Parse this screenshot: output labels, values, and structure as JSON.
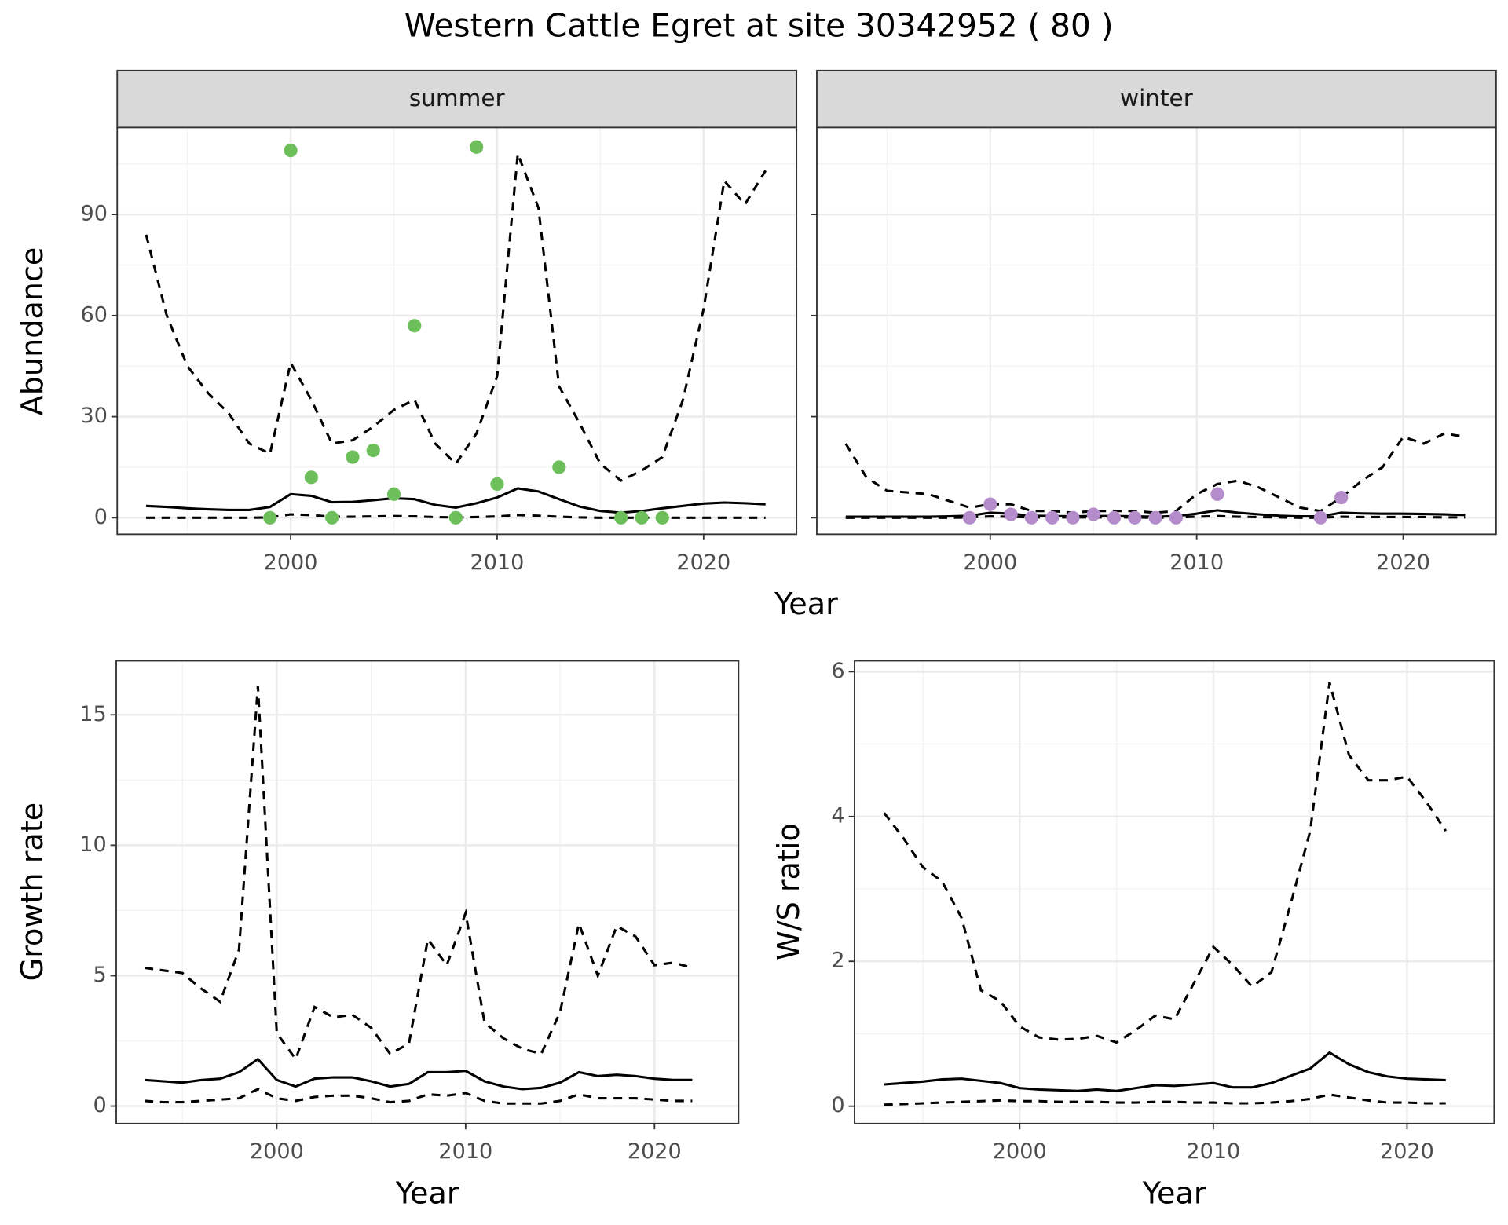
{
  "title": "Western Cattle Egret at site 30342952 ( 80 )",
  "chart_data": [
    {
      "type": "line",
      "xlabel": "Year",
      "ylabel": "Abundance",
      "xlim": [
        1991.6,
        2024.5
      ],
      "xticks": [
        2000,
        2010,
        2020
      ],
      "ylim": [
        -4.9,
        115.8
      ],
      "yticks": [
        0,
        30,
        60,
        90
      ],
      "grid": true,
      "facets": [
        {
          "label": "summer",
          "x": [
            1993,
            1994,
            1995,
            1996,
            1997,
            1998,
            1999,
            2000,
            2001,
            2002,
            2003,
            2004,
            2005,
            2006,
            2007,
            2008,
            2009,
            2010,
            2011,
            2012,
            2013,
            2014,
            2015,
            2016,
            2017,
            2018,
            2019,
            2020,
            2021,
            2022,
            2023
          ],
          "series": [
            {
              "style": "dashed",
              "color": "#000000",
              "values": [
                84,
                60,
                45,
                37,
                31,
                22,
                19,
                46,
                35,
                22,
                23,
                27,
                32,
                35,
                22,
                16,
                25,
                42,
                108,
                92,
                39,
                28,
                16,
                11,
                14,
                18,
                35,
                62,
                100,
                93,
                103
              ]
            },
            {
              "style": "solid",
              "color": "#000000",
              "values": [
                3.5,
                3.2,
                2.8,
                2.5,
                2.3,
                2.3,
                3.2,
                7,
                6.5,
                4.6,
                4.7,
                5.2,
                5.8,
                5.5,
                3.8,
                3.0,
                4.3,
                6.0,
                8.7,
                7.8,
                5.5,
                3.3,
                2.0,
                1.5,
                2.0,
                2.8,
                3.5,
                4.2,
                4.5,
                4.3,
                4.0
              ]
            },
            {
              "style": "dashed",
              "color": "#000000",
              "values": [
                0,
                0,
                0,
                0,
                0,
                0,
                0.1,
                1,
                0.8,
                0.3,
                0.3,
                0.4,
                0.5,
                0.4,
                0.2,
                0.1,
                0.2,
                0.4,
                0.8,
                0.6,
                0.3,
                0.1,
                0,
                0,
                0,
                0,
                0,
                0,
                0,
                0,
                0
              ]
            },
            {
              "style": "points",
              "color": "#6dbf5b",
              "x": [
                1999,
                2000,
                2001,
                2002,
                2003,
                2004,
                2005,
                2006,
                2008,
                2009,
                2010,
                2013,
                2016,
                2017,
                2018
              ],
              "values": [
                0,
                109,
                12,
                0,
                18,
                20,
                7,
                57,
                0,
                110,
                10,
                15,
                0,
                0,
                0
              ]
            }
          ]
        },
        {
          "label": "winter",
          "x": [
            1993,
            1994,
            1995,
            1996,
            1997,
            1998,
            1999,
            2000,
            2001,
            2002,
            2003,
            2004,
            2005,
            2006,
            2007,
            2008,
            2009,
            2010,
            2011,
            2012,
            2013,
            2014,
            2015,
            2016,
            2017,
            2018,
            2019,
            2020,
            2021,
            2022,
            2023
          ],
          "series": [
            {
              "style": "dashed",
              "color": "#000000",
              "values": [
                22,
                12,
                8,
                7.5,
                7,
                5,
                3,
                4,
                4,
                2,
                2,
                1.5,
                2,
                2,
                2,
                1.5,
                2,
                7,
                10,
                11,
                9,
                6,
                3,
                2,
                6,
                11,
                15,
                24,
                22,
                25,
                24
              ]
            },
            {
              "style": "solid",
              "color": "#000000",
              "values": [
                0.3,
                0.3,
                0.3,
                0.3,
                0.3,
                0.4,
                0.6,
                1.5,
                1.2,
                0.6,
                0.5,
                0.4,
                0.5,
                0.5,
                0.4,
                0.3,
                0.5,
                1.2,
                2.2,
                1.5,
                1.0,
                0.6,
                0.4,
                0.4,
                1.5,
                1.3,
                1.2,
                1.2,
                1.1,
                1.0,
                0.8
              ]
            },
            {
              "style": "dashed",
              "color": "#000000",
              "values": [
                0,
                0,
                0,
                0,
                0,
                0,
                0.1,
                0.4,
                0.3,
                0.1,
                0.1,
                0.1,
                0.1,
                0.1,
                0.1,
                0,
                0.1,
                0.3,
                0.5,
                0.3,
                0.2,
                0.1,
                0,
                0,
                0.3,
                0.2,
                0.2,
                0.2,
                0.2,
                0.1,
                0.1
              ]
            },
            {
              "style": "points",
              "color": "#b48ccb",
              "x": [
                1999,
                2000,
                2001,
                2002,
                2003,
                2004,
                2005,
                2006,
                2007,
                2008,
                2009,
                2011,
                2016,
                2017
              ],
              "values": [
                0,
                4,
                1,
                0,
                0,
                0,
                1,
                0,
                0,
                0,
                0,
                7,
                0,
                6
              ]
            }
          ]
        }
      ]
    },
    {
      "type": "line",
      "xlabel": "Year",
      "ylabel": "Growth rate",
      "xlim": [
        1991.5,
        2024.45
      ],
      "xticks": [
        2000,
        2010,
        2020
      ],
      "ylim": [
        -0.67,
        17.07
      ],
      "yticks": [
        0,
        5,
        10,
        15
      ],
      "grid": true,
      "x": [
        1993,
        1994,
        1995,
        1996,
        1997,
        1998,
        1999,
        2000,
        2001,
        2002,
        2003,
        2004,
        2005,
        2006,
        2007,
        2008,
        2009,
        2010,
        2011,
        2012,
        2013,
        2014,
        2015,
        2016,
        2017,
        2018,
        2019,
        2020,
        2021,
        2022
      ],
      "series": [
        {
          "style": "dashed",
          "color": "#000000",
          "values": [
            5.3,
            5.2,
            5.1,
            4.5,
            4.0,
            6.0,
            16.1,
            2.8,
            1.8,
            3.8,
            3.4,
            3.5,
            3.0,
            2.0,
            2.4,
            6.4,
            5.4,
            7.4,
            3.2,
            2.6,
            2.2,
            2.0,
            3.6,
            7.0,
            5.0,
            6.9,
            6.5,
            5.4,
            5.5,
            5.3
          ]
        },
        {
          "style": "solid",
          "color": "#000000",
          "values": [
            1.0,
            0.95,
            0.9,
            1.0,
            1.05,
            1.3,
            1.8,
            1.0,
            0.75,
            1.05,
            1.1,
            1.1,
            0.95,
            0.75,
            0.85,
            1.3,
            1.3,
            1.35,
            0.95,
            0.75,
            0.65,
            0.7,
            0.9,
            1.3,
            1.15,
            1.2,
            1.15,
            1.05,
            1.0,
            1.0
          ]
        },
        {
          "style": "dashed",
          "color": "#000000",
          "values": [
            0.2,
            0.15,
            0.15,
            0.2,
            0.25,
            0.3,
            0.65,
            0.3,
            0.2,
            0.35,
            0.4,
            0.4,
            0.3,
            0.15,
            0.2,
            0.45,
            0.4,
            0.5,
            0.2,
            0.1,
            0.1,
            0.1,
            0.2,
            0.45,
            0.3,
            0.3,
            0.3,
            0.25,
            0.2,
            0.2
          ]
        }
      ]
    },
    {
      "type": "line",
      "xlabel": "Year",
      "ylabel": "W/S ratio",
      "xlim": [
        1991.47,
        2024.5
      ],
      "xticks": [
        2000,
        2010,
        2020
      ],
      "ylim": [
        -0.24,
        6.15
      ],
      "yticks": [
        0,
        2,
        4,
        6
      ],
      "grid": true,
      "x": [
        1993,
        1994,
        1995,
        1996,
        1997,
        1998,
        1999,
        2000,
        2001,
        2002,
        2003,
        2004,
        2005,
        2006,
        2007,
        2008,
        2009,
        2010,
        2011,
        2012,
        2013,
        2014,
        2015,
        2016,
        2017,
        2018,
        2019,
        2020,
        2021,
        2022
      ],
      "series": [
        {
          "style": "dashed",
          "color": "#000000",
          "values": [
            4.05,
            3.7,
            3.3,
            3.1,
            2.6,
            1.6,
            1.45,
            1.1,
            0.95,
            0.92,
            0.93,
            0.97,
            0.88,
            1.05,
            1.25,
            1.2,
            1.7,
            2.2,
            1.95,
            1.65,
            1.85,
            2.8,
            3.8,
            5.85,
            4.85,
            4.5,
            4.5,
            4.55,
            4.2,
            3.8
          ]
        },
        {
          "style": "solid",
          "color": "#000000",
          "values": [
            0.3,
            0.32,
            0.34,
            0.37,
            0.38,
            0.35,
            0.32,
            0.25,
            0.23,
            0.22,
            0.21,
            0.23,
            0.21,
            0.25,
            0.29,
            0.28,
            0.3,
            0.32,
            0.26,
            0.26,
            0.32,
            0.42,
            0.52,
            0.74,
            0.58,
            0.47,
            0.41,
            0.38,
            0.37,
            0.36
          ]
        },
        {
          "style": "dashed",
          "color": "#000000",
          "values": [
            0.02,
            0.03,
            0.04,
            0.05,
            0.06,
            0.07,
            0.08,
            0.07,
            0.07,
            0.06,
            0.06,
            0.06,
            0.05,
            0.05,
            0.06,
            0.06,
            0.05,
            0.05,
            0.04,
            0.04,
            0.05,
            0.07,
            0.1,
            0.16,
            0.12,
            0.08,
            0.05,
            0.05,
            0.04,
            0.04
          ]
        }
      ]
    }
  ]
}
